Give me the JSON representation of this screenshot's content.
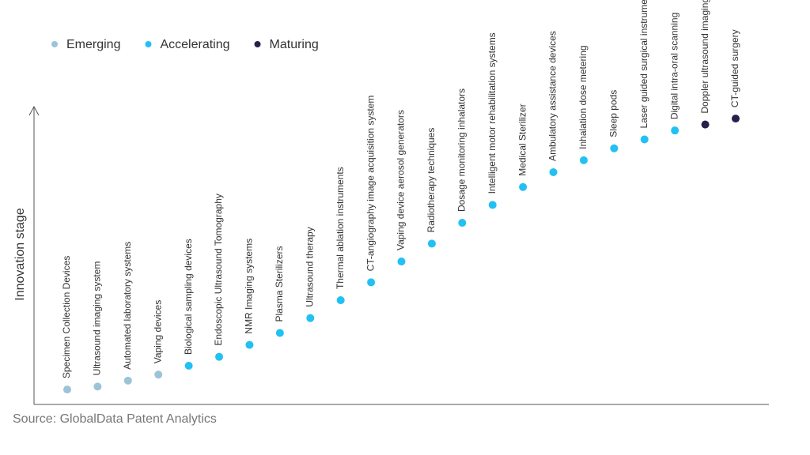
{
  "chart_data": {
    "type": "scatter",
    "ylabel": "Innovation stage",
    "source": "Source: GlobalData Patent Analytics",
    "categories": [
      "Specimen Collection Devices",
      "Ultrasound imaging system",
      "Automated laboratory systems",
      "Vaping devices",
      "Biological sampling devices",
      "Endoscopic Ultrasound Tomography",
      "NMR Imaging systems",
      "Plasma Sterilizers",
      "Ultrasound therapy",
      "Thermal ablation instruments",
      "CT-angiography image acquisition system",
      "Vaping device aerosol generators",
      "Radiotherapy techniques",
      "Dosage monitoring inhalators",
      "Intelligent motor rehabilitation systems",
      "Medical Sterilizer",
      "Ambulatory assistance devices",
      "Inhalation dose metering",
      "Sleep pods",
      "Laser guided surgical instruments",
      "Digital intra-oral scanning",
      "Doppler ultrasound imaging",
      "CT-guided surgery"
    ],
    "series": [
      {
        "name": "Emerging",
        "color": "#9dc3d9",
        "values": [
          5,
          6,
          8,
          10,
          null,
          null,
          null,
          null,
          null,
          null,
          null,
          null,
          null,
          null,
          null,
          null,
          null,
          null,
          null,
          null,
          null,
          null,
          null
        ]
      },
      {
        "name": "Accelerating",
        "color": "#22c0f3",
        "values": [
          null,
          null,
          null,
          null,
          13,
          16,
          20,
          24,
          29,
          35,
          41,
          48,
          54,
          61,
          67,
          73,
          78,
          82,
          86,
          89,
          92,
          null,
          null
        ]
      },
      {
        "name": "Maturing",
        "color": "#2a1f4a",
        "values": [
          null,
          null,
          null,
          null,
          null,
          null,
          null,
          null,
          null,
          null,
          null,
          null,
          null,
          null,
          null,
          null,
          null,
          null,
          null,
          null,
          null,
          94,
          96
        ]
      }
    ],
    "ylim": [
      0,
      100
    ]
  }
}
